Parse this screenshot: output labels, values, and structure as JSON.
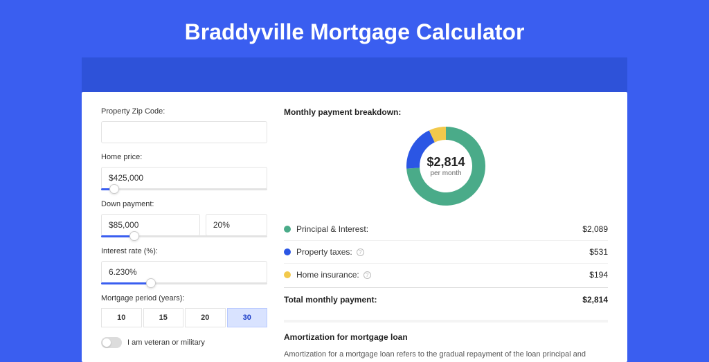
{
  "title": "Braddyville Mortgage Calculator",
  "colors": {
    "page_bg": "#3a5ef0",
    "header_strip": "#2e52d9",
    "accent": "#3a5ef0"
  },
  "form": {
    "zip": {
      "label": "Property Zip Code:",
      "value": ""
    },
    "home_price": {
      "label": "Home price:",
      "value": "$425,000",
      "slider_pct": 8
    },
    "down_payment": {
      "label": "Down payment:",
      "amount": "$85,000",
      "percent": "20%",
      "slider_pct": 20
    },
    "interest_rate": {
      "label": "Interest rate (%):",
      "value": "6.230%",
      "slider_pct": 30
    },
    "period": {
      "label": "Mortgage period (years):",
      "options": [
        "10",
        "15",
        "20",
        "30"
      ],
      "selected": "30"
    },
    "veteran": {
      "label": "I am veteran or military",
      "checked": false
    }
  },
  "breakdown": {
    "title": "Monthly payment breakdown:",
    "donut": {
      "center_amount": "$2,814",
      "center_sub": "per month",
      "slices": [
        {
          "key": "principal_interest",
          "label": "Principal & Interest:",
          "value": "$2,089",
          "color": "#4aab89",
          "pct": 74,
          "info": false
        },
        {
          "key": "property_taxes",
          "label": "Property taxes:",
          "value": "$531",
          "color": "#2b56e4",
          "pct": 19,
          "info": true
        },
        {
          "key": "home_insurance",
          "label": "Home insurance:",
          "value": "$194",
          "color": "#f2c94c",
          "pct": 7,
          "info": true
        }
      ]
    },
    "total": {
      "label": "Total monthly payment:",
      "value": "$2,814"
    }
  },
  "amortization": {
    "title": "Amortization for mortgage loan",
    "text": "Amortization for a mortgage loan refers to the gradual repayment of the loan principal and interest over a specified"
  }
}
